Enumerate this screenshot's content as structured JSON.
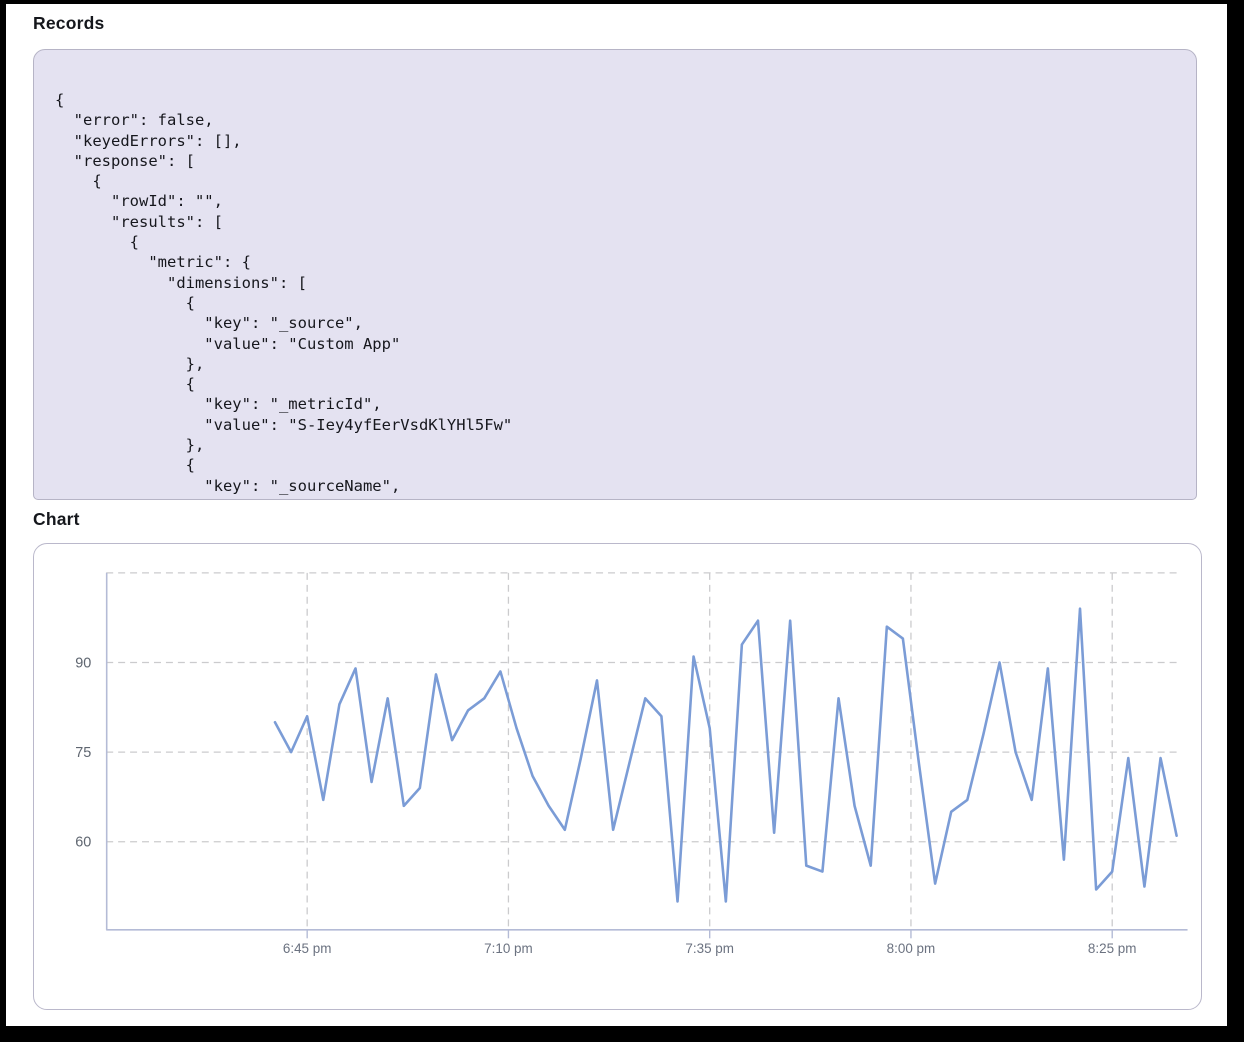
{
  "sections": {
    "records_title": "Records",
    "chart_title": "Chart"
  },
  "records": {
    "code_lines": [
      "{",
      "  \"error\": false,",
      "  \"keyedErrors\": [],",
      "  \"response\": [",
      "    {",
      "      \"rowId\": \"\",",
      "      \"results\": [",
      "        {",
      "          \"metric\": {",
      "            \"dimensions\": [",
      "              {",
      "                \"key\": \"_source\",",
      "                \"value\": \"Custom App\"",
      "              },",
      "              {",
      "                \"key\": \"_metricId\",",
      "                \"value\": \"S-Iey4yfEerVsdKlYHl5Fw\"",
      "              },",
      "              {",
      "                \"key\": \"_sourceName\","
    ]
  },
  "chart_data": {
    "type": "line",
    "title": "Chart",
    "series_start_label": "6:41 pm",
    "point_interval_minutes": 2,
    "values": [
      80,
      75,
      81,
      67,
      83,
      89,
      70,
      84,
      66,
      69,
      88,
      77,
      82,
      84,
      88.5,
      79,
      71,
      66,
      62,
      74,
      87,
      62,
      73,
      84,
      81,
      50,
      91,
      79,
      50,
      93,
      97,
      61.5,
      97,
      56,
      55,
      84,
      66,
      56,
      96,
      94,
      73,
      53,
      65,
      67,
      78,
      90,
      75,
      67,
      89,
      57,
      99,
      52,
      55,
      74,
      52.5,
      74,
      61
    ],
    "x_ticks": [
      {
        "label": "6:45 pm",
        "minute": 4
      },
      {
        "label": "7:10 pm",
        "minute": 29
      },
      {
        "label": "7:35 pm",
        "minute": 54
      },
      {
        "label": "8:00 pm",
        "minute": 79
      },
      {
        "label": "8:25 pm",
        "minute": 104
      }
    ],
    "y_tick_labels": [
      60,
      75,
      90
    ],
    "y_gridlines": [
      60,
      75,
      90,
      105
    ],
    "ylim": [
      45.3,
      105
    ],
    "grid": "dashed",
    "legend": "none",
    "line_color": "#7b9cd6"
  }
}
